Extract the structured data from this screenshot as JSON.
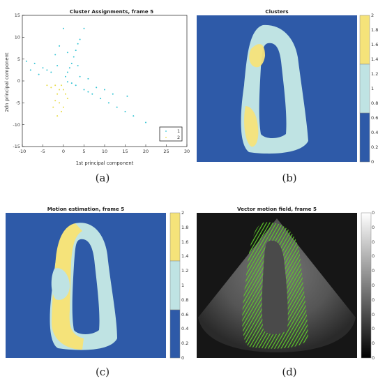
{
  "panels": {
    "a": {
      "title": "Cluster Assignments, frame 5",
      "caption": "(a)"
    },
    "b": {
      "title": "Clusters",
      "caption": "(b)"
    },
    "c": {
      "title": "Motion estimation, frame 5",
      "caption": "(c)"
    },
    "d": {
      "title": "Vector motion field, frame 5",
      "caption": "(d)"
    }
  },
  "colors": {
    "blue": "#2e5aa8",
    "cyan": "#bfe3e3",
    "yellow": "#f5e37a",
    "green": "#5ecb2a",
    "scatter_cyan": "#35c4d4",
    "scatter_yellow": "#e9dc4a"
  },
  "chart_data": [
    {
      "type": "scatter",
      "title": "Cluster Assignments, frame 5",
      "xlabel": "1st principal component",
      "ylabel": "2dn principal component",
      "xlim": [
        -10,
        30
      ],
      "ylim": [
        -15,
        15
      ],
      "xticks": [
        "-10",
        "-5",
        "0",
        "5",
        "10",
        "15",
        "20",
        "25",
        "30"
      ],
      "yticks": [
        "15",
        "10",
        "5",
        "0",
        "-5",
        "-10",
        "-15"
      ],
      "legend": {
        "placement": "bottom-right",
        "entries": [
          "1",
          "2"
        ]
      },
      "series": [
        {
          "name": "1",
          "color": "#35c4d4",
          "points": [
            [
              2.0,
              4.0
            ],
            [
              2.5,
              5.5
            ],
            [
              3.0,
              7.0
            ],
            [
              3.5,
              8.5
            ],
            [
              4.0,
              9.5
            ],
            [
              1.5,
              3.0
            ],
            [
              1.0,
              2.0
            ],
            [
              0.5,
              1.0
            ],
            [
              -3.0,
              2.0
            ],
            [
              -5.0,
              3.0
            ],
            [
              -7.0,
              4.0
            ],
            [
              -9.0,
              4.5
            ],
            [
              -4.0,
              2.5
            ],
            [
              -6.0,
              1.5
            ],
            [
              -8.0,
              2.5
            ],
            [
              3.0,
              -1.0
            ],
            [
              5.0,
              -2.0
            ],
            [
              7.0,
              -3.0
            ],
            [
              9.0,
              -4.0
            ],
            [
              11.0,
              -5.0
            ],
            [
              13.0,
              -6.0
            ],
            [
              15.0,
              -7.0
            ],
            [
              17.0,
              -8.0
            ],
            [
              6.0,
              -2.5
            ],
            [
              8.0,
              -1.5
            ],
            [
              10.0,
              -2.0
            ],
            [
              12.0,
              -3.0
            ],
            [
              2.0,
              -0.5
            ],
            [
              1.0,
              -0.2
            ],
            [
              4.0,
              1.0
            ],
            [
              6.0,
              0.5
            ],
            [
              15.5,
              -3.5
            ],
            [
              20.0,
              -9.5
            ],
            [
              5.0,
              12.0
            ],
            [
              -1.0,
              8.0
            ],
            [
              0.0,
              12.0
            ],
            [
              -2.0,
              6.0
            ],
            [
              1.0,
              6.5
            ],
            [
              3.5,
              3.5
            ],
            [
              -1.5,
              3.5
            ]
          ]
        },
        {
          "name": "2",
          "color": "#e9dc4a",
          "points": [
            [
              -0.5,
              -1.0
            ],
            [
              -1.0,
              -2.0
            ],
            [
              -1.5,
              -3.0
            ],
            [
              -2.0,
              -4.5
            ],
            [
              -2.5,
              -6.0
            ],
            [
              -1.0,
              -5.0
            ],
            [
              0.0,
              -2.0
            ],
            [
              0.5,
              -3.0
            ],
            [
              -3.0,
              -1.5
            ],
            [
              -4.0,
              -1.0
            ],
            [
              -2.0,
              -1.0
            ],
            [
              -0.5,
              -7.0
            ],
            [
              1.0,
              -4.0
            ],
            [
              -1.5,
              -8.0
            ],
            [
              0.0,
              -6.0
            ]
          ]
        }
      ]
    },
    {
      "type": "heatmap",
      "title": "Clusters",
      "colorbar": {
        "ticks": [
          "2",
          "1.8",
          "1.6",
          "1.4",
          "1.2",
          "1",
          "0.8",
          "0.6",
          "0.4",
          "0.2",
          "0"
        ]
      }
    },
    {
      "type": "heatmap",
      "title": "Motion estimation, frame 5",
      "colorbar": {
        "ticks": [
          "2",
          "1.8",
          "1.6",
          "1.4",
          "1.2",
          "1",
          "0.8",
          "0.6",
          "0.4",
          "0.2",
          "0"
        ]
      }
    },
    {
      "type": "heatmap",
      "title": "Vector motion field, frame 5",
      "colorbar": {
        "ticks": [
          "0",
          "0",
          "0",
          "0",
          "0",
          "0",
          "0",
          "0",
          "0",
          "0",
          "0"
        ]
      }
    }
  ]
}
